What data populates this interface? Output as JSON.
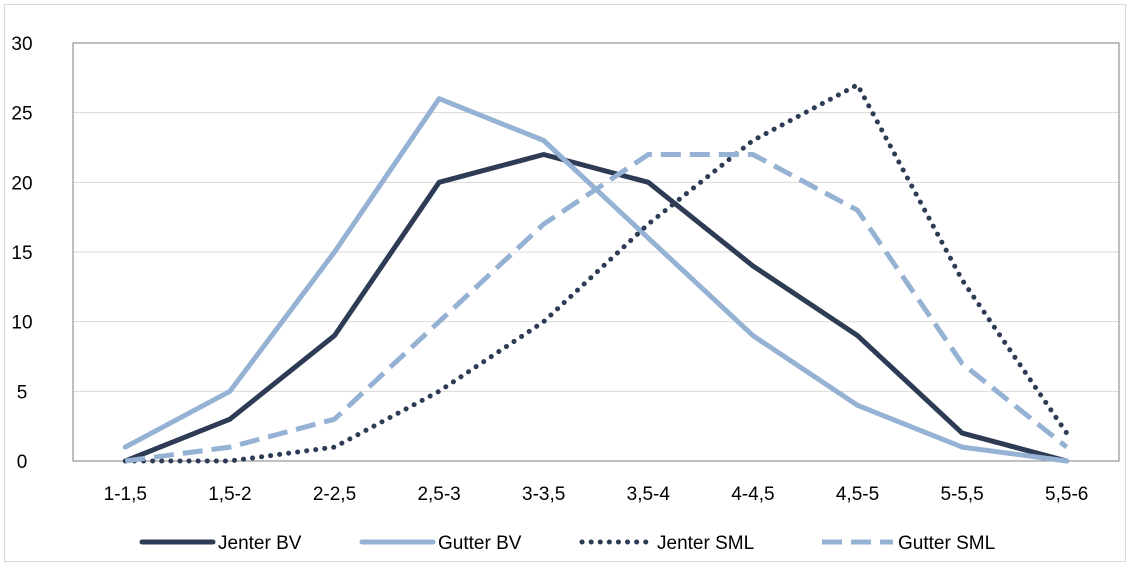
{
  "chart_data": {
    "type": "line",
    "categories": [
      "1-1,5",
      "1,5-2",
      "2-2,5",
      "2,5-3",
      "3-3,5",
      "3,5-4",
      "4-4,5",
      "4,5-5",
      "5-5,5",
      "5,5-6"
    ],
    "series": [
      {
        "name": "Jenter BV",
        "values": [
          0,
          3,
          9,
          20,
          22,
          20,
          14,
          9,
          2,
          0
        ],
        "color": "#2e3b55",
        "dash": "solid"
      },
      {
        "name": "Gutter BV",
        "values": [
          1,
          5,
          15,
          26,
          23,
          16,
          9,
          4,
          1,
          0
        ],
        "color": "#95b1d3",
        "dash": "solid"
      },
      {
        "name": "Jenter SML",
        "values": [
          0,
          0,
          1,
          5,
          10,
          17,
          23,
          27,
          13,
          2
        ],
        "color": "#2e3b55",
        "dash": "dotted"
      },
      {
        "name": "Gutter SML",
        "values": [
          0,
          1,
          3,
          10,
          17,
          22,
          22,
          18,
          7,
          1
        ],
        "color": "#95b1d3",
        "dash": "dashed"
      }
    ],
    "yticks": [
      "0",
      "5",
      "10",
      "15",
      "20",
      "25",
      "30"
    ],
    "ylim": [
      0,
      30
    ],
    "grid": true,
    "legend": "bottom",
    "title": "",
    "xlabel": "",
    "ylabel": ""
  }
}
